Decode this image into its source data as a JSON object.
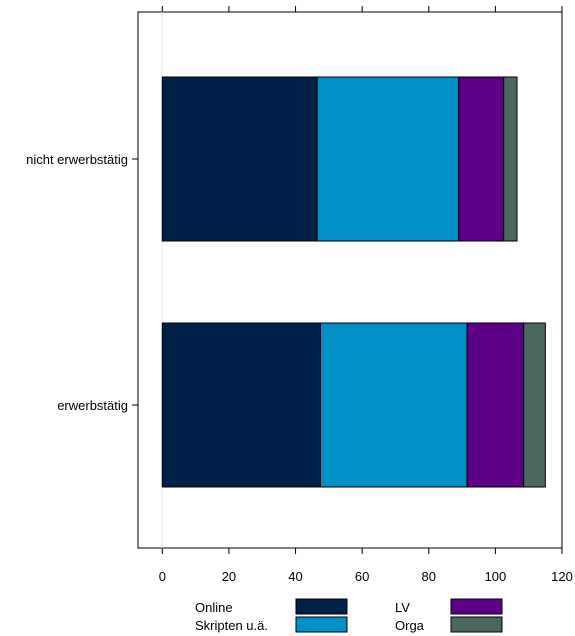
{
  "chart_data": {
    "type": "bar",
    "orientation": "horizontal",
    "stacked": true,
    "title": "",
    "xlabel": "",
    "ylabel": "",
    "xlim": [
      -7.3,
      120
    ],
    "xticks": [
      0,
      20,
      40,
      60,
      80,
      100,
      120
    ],
    "grid": false,
    "legend_position": "bottom",
    "categories": [
      "nicht erwerbstätig",
      "erwerbstätig"
    ],
    "series": [
      {
        "name": "Online",
        "color": "#002147",
        "values": [
          46.5,
          47.5
        ]
      },
      {
        "name": "Skripten u.ä.",
        "color": "#0090C6",
        "values": [
          42.5,
          44.0
        ]
      },
      {
        "name": "LV",
        "color": "#5C0088",
        "values": [
          13.5,
          17.0
        ]
      },
      {
        "name": "Orga",
        "color": "#4A6860",
        "values": [
          4.0,
          6.5
        ]
      }
    ]
  }
}
